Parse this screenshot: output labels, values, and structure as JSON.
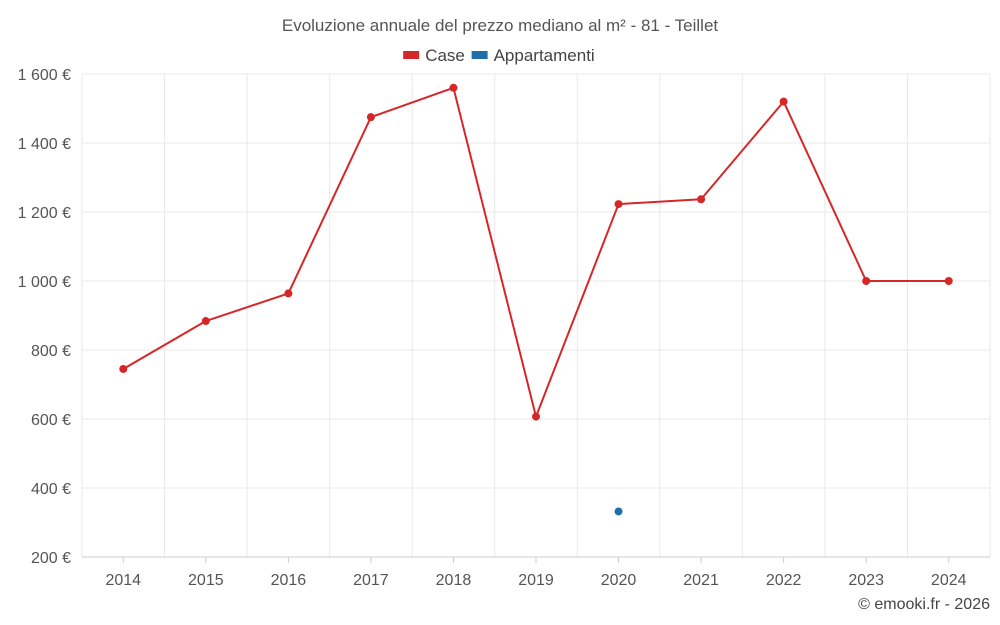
{
  "chart_data": {
    "type": "line",
    "title": "Evoluzione annuale del prezzo mediano al m² - 81 - Teillet",
    "x": [
      "2014",
      "2015",
      "2016",
      "2017",
      "2018",
      "2019",
      "2020",
      "2021",
      "2022",
      "2023",
      "2024"
    ],
    "series": [
      {
        "name": "Case",
        "color": "#d62728",
        "values": [
          745,
          884,
          964,
          1475,
          1560,
          607,
          1223,
          1237,
          1520,
          1000,
          1000
        ]
      },
      {
        "name": "Appartamenti",
        "color": "#1f6fa8",
        "values": [
          null,
          null,
          null,
          null,
          null,
          null,
          332,
          null,
          null,
          null,
          null
        ]
      }
    ],
    "ylim": [
      200,
      1600
    ],
    "yticks": [
      200,
      400,
      600,
      800,
      1000,
      1200,
      1400,
      1600
    ],
    "ytick_labels": [
      "200 €",
      "400 €",
      "600 €",
      "800 €",
      "1 000 €",
      "1 200 €",
      "1 400 €",
      "1 600 €"
    ],
    "grid": true,
    "legend_position": "top-center",
    "xlabel": "",
    "ylabel": ""
  },
  "credit": "© emooki.fr - 2026"
}
